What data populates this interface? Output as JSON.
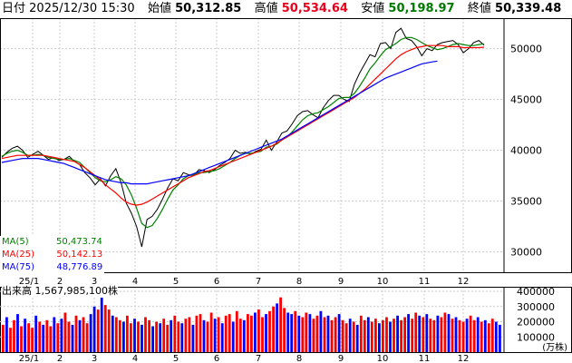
{
  "header": {
    "date_label": "日付",
    "date_value": "2025/12/30 15:30",
    "open_label": "始値",
    "open_value": "50,312.85",
    "high_label": "高値",
    "high_value": "50,534.64",
    "low_label": "安値",
    "low_value": "50,198.97",
    "close_label": "終値",
    "close_value": "50,339.48",
    "colors": {
      "high": "#e8001c",
      "low": "#007a00",
      "text": "#000000"
    }
  },
  "legend": {
    "ma5": {
      "label": "MA(5)",
      "value": "50,473.74",
      "color": "#008000"
    },
    "ma25": {
      "label": "MA(25)",
      "value": "50,142.13",
      "color": "#ff0000"
    },
    "ma75": {
      "label": "MA(75)",
      "value": "48,776.89",
      "color": "#0000ff"
    }
  },
  "volume_legend": {
    "label": "出来高",
    "value": "1,567,985,100株"
  },
  "chart_data": [
    {
      "type": "line",
      "title": "",
      "x_ticks": [
        "25/1",
        "2",
        "3",
        "4",
        "5",
        "6",
        "7",
        "8",
        "9",
        "10",
        "11",
        "12"
      ],
      "y_ticks": [
        "30000",
        "35000",
        "40000",
        "45000",
        "50000"
      ],
      "ylim": [
        28000,
        53000
      ],
      "grid": true,
      "price_x": [
        0,
        4,
        8,
        12,
        16,
        20,
        24,
        28,
        32,
        36,
        40,
        44,
        48,
        52,
        56,
        60,
        64,
        68,
        72,
        76,
        80,
        84,
        88,
        92,
        96,
        100,
        104,
        108,
        112,
        116,
        120,
        124,
        128,
        132,
        136,
        140,
        144,
        148,
        152,
        156,
        160,
        164,
        168,
        172,
        176,
        180,
        184,
        188,
        192,
        196,
        200,
        204,
        208,
        212,
        216,
        220,
        224,
        228,
        232,
        236,
        240,
        244,
        248,
        252,
        256,
        260,
        264,
        268,
        272,
        276,
        280,
        284,
        288,
        292,
        296,
        300,
        304,
        308,
        312,
        316,
        320,
        324,
        328,
        332,
        336,
        340,
        344,
        348,
        352,
        356,
        360,
        364,
        368,
        372,
        376,
        380,
        384,
        388,
        392,
        396,
        400,
        404,
        408,
        412,
        416,
        420,
        424,
        428,
        432,
        436,
        440,
        444,
        448,
        452,
        456,
        460,
        464,
        468,
        472,
        476,
        480,
        484,
        488,
        492,
        496,
        500,
        504,
        508,
        512,
        516,
        520,
        524,
        528,
        532,
        536,
        540,
        544,
        548
      ],
      "series": [
        {
          "name": "",
          "color": "#000000",
          "values": [
            39300,
            39800,
            40200,
            40400,
            40000,
            39300,
            39600,
            39900,
            39500,
            39100,
            39300,
            39000,
            39100,
            39400,
            38900,
            38600,
            37800,
            37300,
            36600,
            37200,
            36500,
            37500,
            38200,
            36800,
            34800,
            33800,
            32500,
            30500,
            33200,
            33500,
            34200,
            35200,
            36300,
            37200,
            37000,
            37800,
            37600,
            37500,
            38100,
            38000,
            37800,
            38100,
            38500,
            38800,
            39200,
            40000,
            39700,
            39800,
            39600,
            39900,
            40100,
            41000,
            40000,
            40800,
            41700,
            41900,
            42600,
            43400,
            43800,
            43900,
            43500,
            43200,
            44200,
            44900,
            45400,
            45400,
            45000,
            44800,
            46500,
            47600,
            48500,
            49400,
            49200,
            50500,
            50600,
            50000,
            51600,
            52000,
            51000,
            50800,
            50200,
            49300,
            50000,
            49800,
            50400,
            50600,
            50700,
            50800,
            50400,
            49600,
            50000,
            50600,
            50800,
            50339
          ],
          "x_note": "index-aligned to price_x first 96 entries scaled by 4.5"
        },
        {
          "name": "MA(5)",
          "color": "#008000",
          "values": [
            39400,
            39700,
            39900,
            40000,
            39800,
            39500,
            39500,
            39600,
            39500,
            39300,
            39200,
            39100,
            39100,
            39200,
            39000,
            38800,
            38300,
            37800,
            37300,
            37000,
            36900,
            37100,
            37400,
            37200,
            36600,
            35600,
            34300,
            32800,
            32400,
            32600,
            33300,
            34200,
            35200,
            36100,
            36600,
            37200,
            37500,
            37600,
            37800,
            37800,
            37900,
            38000,
            38200,
            38500,
            38800,
            39200,
            39500,
            39700,
            39700,
            39800,
            39900,
            40300,
            40400,
            40600,
            41000,
            41300,
            41800,
            42400,
            43000,
            43400,
            43600,
            43700,
            44000,
            44300,
            44700,
            45100,
            45200,
            45200,
            45600,
            46300,
            47100,
            48000,
            48600,
            49300,
            49900,
            50200,
            50500,
            50900,
            51100,
            51100,
            50900,
            50600,
            50300,
            50100,
            49900,
            50000,
            50200,
            50400,
            50500,
            50400,
            50300,
            50300,
            50400,
            50474
          ]
        },
        {
          "name": "MA(25)",
          "color": "#ff0000",
          "values": [
            39200,
            39300,
            39400,
            39500,
            39500,
            39500,
            39500,
            39500,
            39500,
            39400,
            39300,
            39200,
            39100,
            39000,
            38900,
            38600,
            38300,
            37900,
            37500,
            37100,
            36600,
            36200,
            35800,
            35300,
            34900,
            34700,
            34600,
            34700,
            34900,
            35200,
            35500,
            35800,
            36100,
            36400,
            36700,
            37000,
            37300,
            37500,
            37700,
            37900,
            38000,
            38200,
            38400,
            38600,
            38800,
            39000,
            39200,
            39400,
            39600,
            39800,
            40000,
            40200,
            40400,
            40700,
            41000,
            41300,
            41600,
            41900,
            42200,
            42500,
            42800,
            43100,
            43400,
            43700,
            44000,
            44300,
            44600,
            44900,
            45200,
            45600,
            46000,
            46500,
            47000,
            47500,
            48000,
            48500,
            49000,
            49400,
            49700,
            49900,
            50100,
            50200,
            50300,
            50300,
            50300,
            50300,
            50200,
            50200,
            50200,
            50100,
            50100,
            50100,
            50100,
            50142
          ]
        },
        {
          "name": "MA(75)",
          "color": "#0000ff",
          "values": [
            38800,
            38900,
            39000,
            39100,
            39200,
            39200,
            39200,
            39200,
            39100,
            39000,
            38900,
            38800,
            38700,
            38500,
            38300,
            38100,
            37900,
            37700,
            37500,
            37300,
            37100,
            37000,
            36900,
            36800,
            36800,
            36700,
            36700,
            36700,
            36700,
            36800,
            36900,
            37000,
            37100,
            37200,
            37300,
            37400,
            37500,
            37700,
            37900,
            38100,
            38300,
            38500,
            38700,
            38900,
            39100,
            39300,
            39500,
            39700,
            39900,
            40100,
            40300,
            40500,
            40700,
            40900,
            41100,
            41400,
            41700,
            42000,
            42300,
            42600,
            42900,
            43200,
            43500,
            43800,
            44100,
            44400,
            44700,
            45000,
            45300,
            45600,
            45900,
            46200,
            46500,
            46800,
            47100,
            47300,
            47500,
            47700,
            47900,
            48100,
            48300,
            48500,
            48600,
            48700,
            48776
          ]
        }
      ]
    },
    {
      "type": "bar",
      "title": "",
      "ylabel": "(万株)",
      "y_ticks": [
        "100000",
        "200000",
        "300000",
        "400000"
      ],
      "ylim": [
        0,
        430000
      ],
      "x_ticks": [
        "25/1",
        "2",
        "3",
        "4",
        "5",
        "6",
        "7",
        "8",
        "9",
        "10",
        "11",
        "12"
      ],
      "up_color": "#ff0000",
      "down_color": "#0000ff",
      "values": [
        180000,
        230000,
        160000,
        210000,
        250000,
        170000,
        220000,
        190000,
        160000,
        240000,
        200000,
        180000,
        210000,
        170000,
        230000,
        190000,
        220000,
        260000,
        200000,
        180000,
        240000,
        210000,
        230000,
        190000,
        250000,
        300000,
        280000,
        360000,
        310000,
        280000,
        240000,
        230000,
        210000,
        200000,
        240000,
        190000,
        220000,
        200000,
        180000,
        230000,
        210000,
        170000,
        200000,
        190000,
        220000,
        180000,
        210000,
        240000,
        200000,
        190000,
        220000,
        230000,
        180000,
        240000,
        250000,
        210000,
        200000,
        260000,
        220000,
        230000,
        190000,
        240000,
        250000,
        200000,
        270000,
        220000,
        210000,
        250000,
        240000,
        260000,
        280000,
        230000,
        250000,
        270000,
        300000,
        320000,
        360000,
        290000,
        260000,
        250000,
        270000,
        240000,
        230000,
        260000,
        250000,
        220000,
        240000,
        270000,
        230000,
        240000,
        210000,
        230000,
        250000,
        210000,
        190000,
        220000,
        200000,
        180000,
        240000,
        210000,
        230000,
        200000,
        220000,
        190000,
        210000,
        230000,
        200000,
        220000,
        240000,
        210000,
        230000,
        250000,
        220000,
        260000,
        240000,
        230000,
        250000,
        220000,
        210000,
        240000,
        230000,
        260000,
        250000,
        220000,
        230000,
        210000,
        200000,
        220000,
        240000,
        210000,
        230000,
        200000,
        210000,
        190000,
        220000,
        200000,
        180000
      ],
      "up": [
        1,
        0,
        1,
        1,
        0,
        1,
        0,
        1,
        1,
        0,
        1,
        0,
        1,
        1,
        0,
        1,
        0,
        1,
        1,
        0,
        1,
        0,
        1,
        1,
        0,
        0,
        1,
        0,
        1,
        1,
        0,
        1,
        1,
        0,
        1,
        1,
        0,
        1,
        0,
        1,
        1,
        0,
        1,
        0,
        1,
        1,
        0,
        1,
        1,
        0,
        1,
        1,
        0,
        1,
        1,
        0,
        1,
        1,
        0,
        1,
        0,
        1,
        1,
        0,
        1,
        1,
        0,
        1,
        1,
        0,
        1,
        1,
        0,
        1,
        1,
        0,
        1,
        1,
        0,
        0,
        1,
        0,
        1,
        1,
        0,
        1,
        1,
        0,
        1,
        0,
        1,
        1,
        0,
        1,
        1,
        0,
        1,
        0,
        1,
        1,
        0,
        1,
        1,
        0,
        1,
        1,
        0,
        1,
        0,
        1,
        1,
        0,
        1,
        1,
        0,
        1,
        0,
        1,
        1,
        0,
        1,
        1,
        0,
        1,
        0,
        1,
        1,
        0,
        1,
        1,
        0,
        1,
        0,
        1,
        1,
        0
      ]
    }
  ]
}
